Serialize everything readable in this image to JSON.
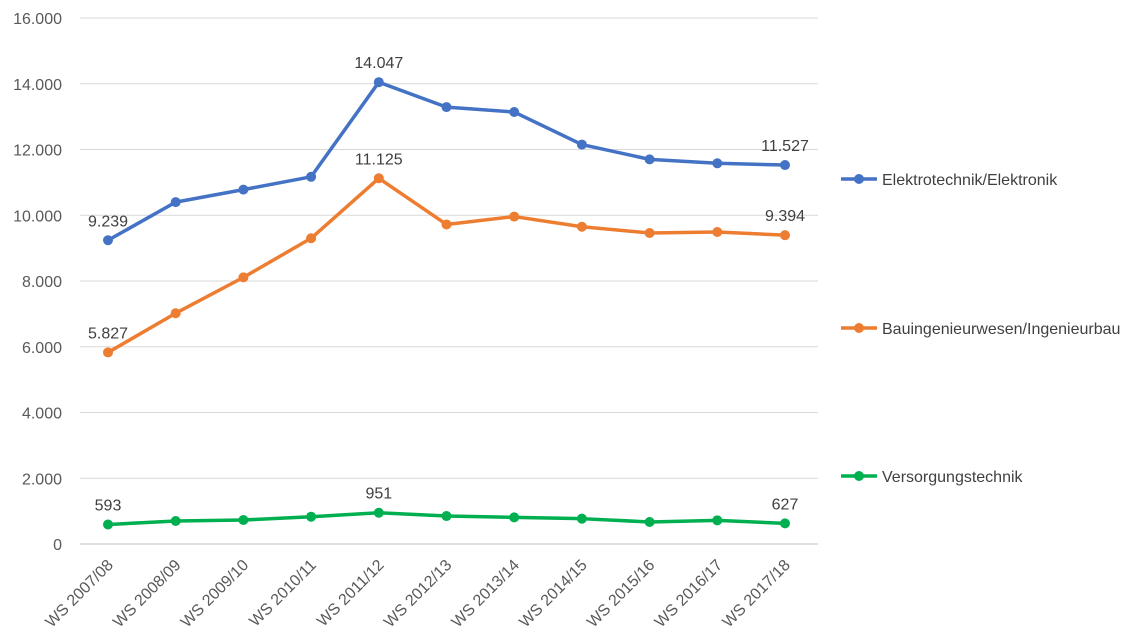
{
  "chart_data": {
    "type": "line",
    "categories": [
      "WS 2007/08",
      "WS 2008/09",
      "WS 2009/10",
      "WS 2010/11",
      "WS 2011/12",
      "WS 2012/13",
      "WS 2013/14",
      "WS 2014/15",
      "WS 2015/16",
      "WS 2016/17",
      "WS 2017/18"
    ],
    "ylim": [
      0,
      16000
    ],
    "yticks": [
      0,
      2000,
      4000,
      6000,
      8000,
      10000,
      12000,
      14000,
      16000
    ],
    "ytick_labels": [
      "0",
      "2.000",
      "4.000",
      "6.000",
      "8.000",
      "10.000",
      "12.000",
      "14.000",
      "16.000"
    ],
    "grid": "horizontal",
    "legend_position": "right",
    "series": [
      {
        "name": "Elektrotechnik/Elektronik",
        "color": "#4472C4",
        "values": [
          9239,
          10400,
          10780,
          11170,
          14047,
          13290,
          13140,
          12150,
          11700,
          11580,
          11527
        ],
        "data_labels": [
          {
            "index": 0,
            "text": "9.239"
          },
          {
            "index": 4,
            "text": "14.047"
          },
          {
            "index": 10,
            "text": "11.527"
          }
        ]
      },
      {
        "name": "Bauingenieurwesen/Ingenieurbau",
        "color": "#ED7D31",
        "values": [
          5827,
          7020,
          8110,
          9300,
          11125,
          9720,
          9960,
          9650,
          9460,
          9490,
          9394
        ],
        "data_labels": [
          {
            "index": 0,
            "text": "5.827"
          },
          {
            "index": 4,
            "text": "11.125"
          },
          {
            "index": 10,
            "text": "9.394"
          }
        ]
      },
      {
        "name": "Versorgungstechnik",
        "color": "#00B050",
        "values": [
          593,
          700,
          730,
          830,
          951,
          850,
          810,
          770,
          670,
          720,
          627
        ],
        "data_labels": [
          {
            "index": 0,
            "text": "593"
          },
          {
            "index": 4,
            "text": "951"
          },
          {
            "index": 10,
            "text": "627"
          }
        ]
      }
    ]
  }
}
